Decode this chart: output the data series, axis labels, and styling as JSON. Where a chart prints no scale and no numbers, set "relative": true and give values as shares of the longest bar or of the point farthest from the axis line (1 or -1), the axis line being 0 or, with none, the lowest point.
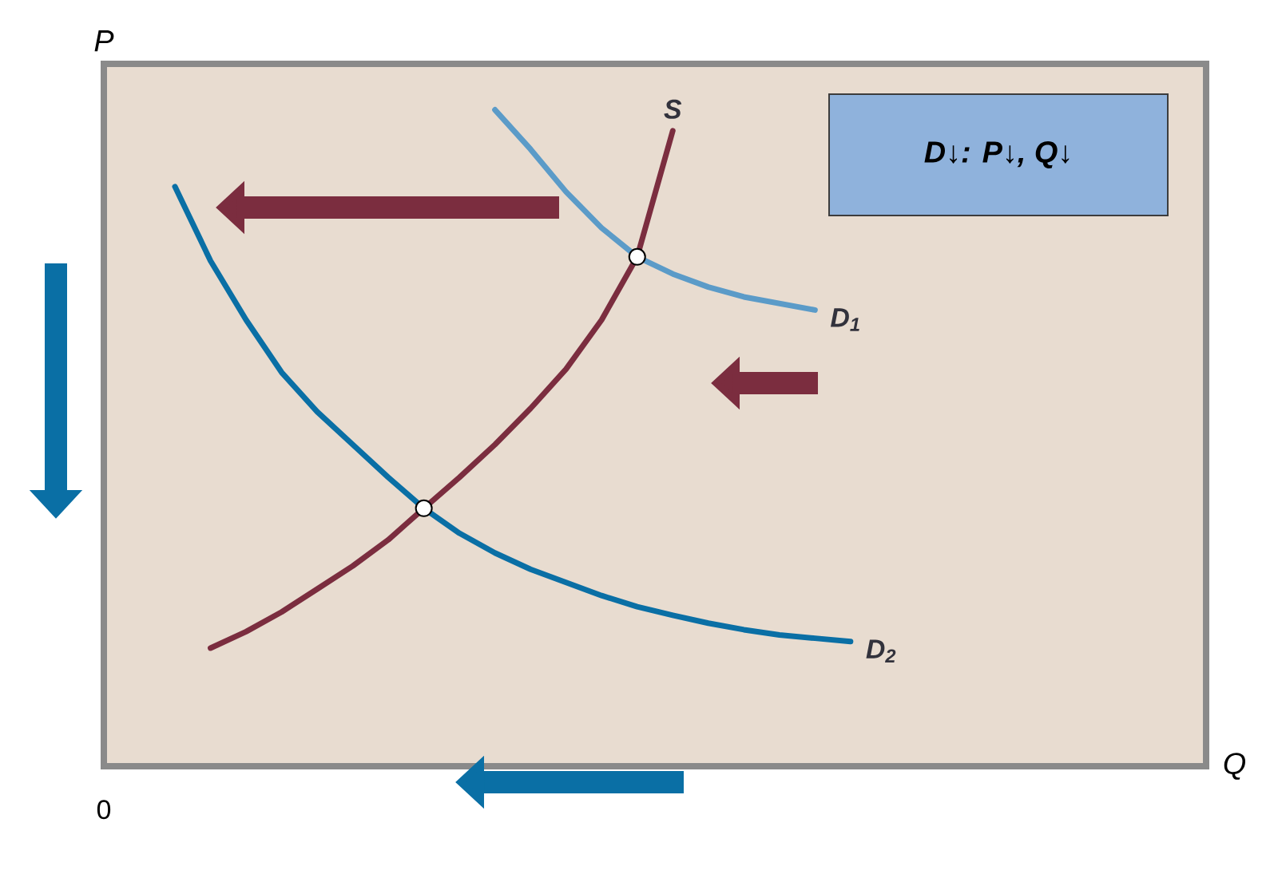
{
  "chart_data": {
    "type": "line",
    "relative": true,
    "xlabel": "Q",
    "ylabel": "P",
    "annotations": [
      "0",
      "**D↓**: **P↓**, **Q↓**"
    ],
    "categories": [
      null,
      null,
      null,
      null,
      null,
      null,
      null,
      null,
      null,
      null,
      null,
      null,
      null,
      null,
      null,
      null,
      null,
      null,
      null,
      null,
      null,
      null,
      null,
      null,
      null,
      null,
      null,
      null,
      null
    ],
    "series": [
      {
        "name": "S",
        "color": "#7b2d3f",
        "values": [
          null,
          null,
          0.18,
          0.205,
          0.235,
          0.27,
          0.305,
          0.345,
          0.393,
          0.44,
          0.49,
          0.545,
          0.605,
          0.68,
          0.776,
          0.968,
          null,
          null,
          null,
          null,
          null,
          null,
          null,
          null,
          null,
          null,
          null,
          null,
          null
        ]
      },
      {
        "name": "D$_{1}$",
        "color": "#5b9bc8",
        "values": [
          null,
          null,
          null,
          null,
          null,
          null,
          null,
          null,
          null,
          null,
          1.0,
          0.94,
          0.875,
          0.82,
          0.776,
          0.75,
          0.73,
          0.715,
          0.705,
          0.695,
          null,
          null,
          null,
          null,
          null,
          null,
          null,
          null,
          null
        ]
      },
      {
        "name": "D$_{2}$",
        "color": "#0a6fa5",
        "values": [
          null,
          0.883,
          0.77,
          0.68,
          0.6,
          0.54,
          0.49,
          0.44,
          0.393,
          0.355,
          0.325,
          0.3,
          0.28,
          0.26,
          0.243,
          0.23,
          0.218,
          0.208,
          0.2,
          0.195,
          0.19,
          null,
          null,
          null,
          null,
          null,
          null,
          null,
          null
        ]
      }
    ]
  }
}
